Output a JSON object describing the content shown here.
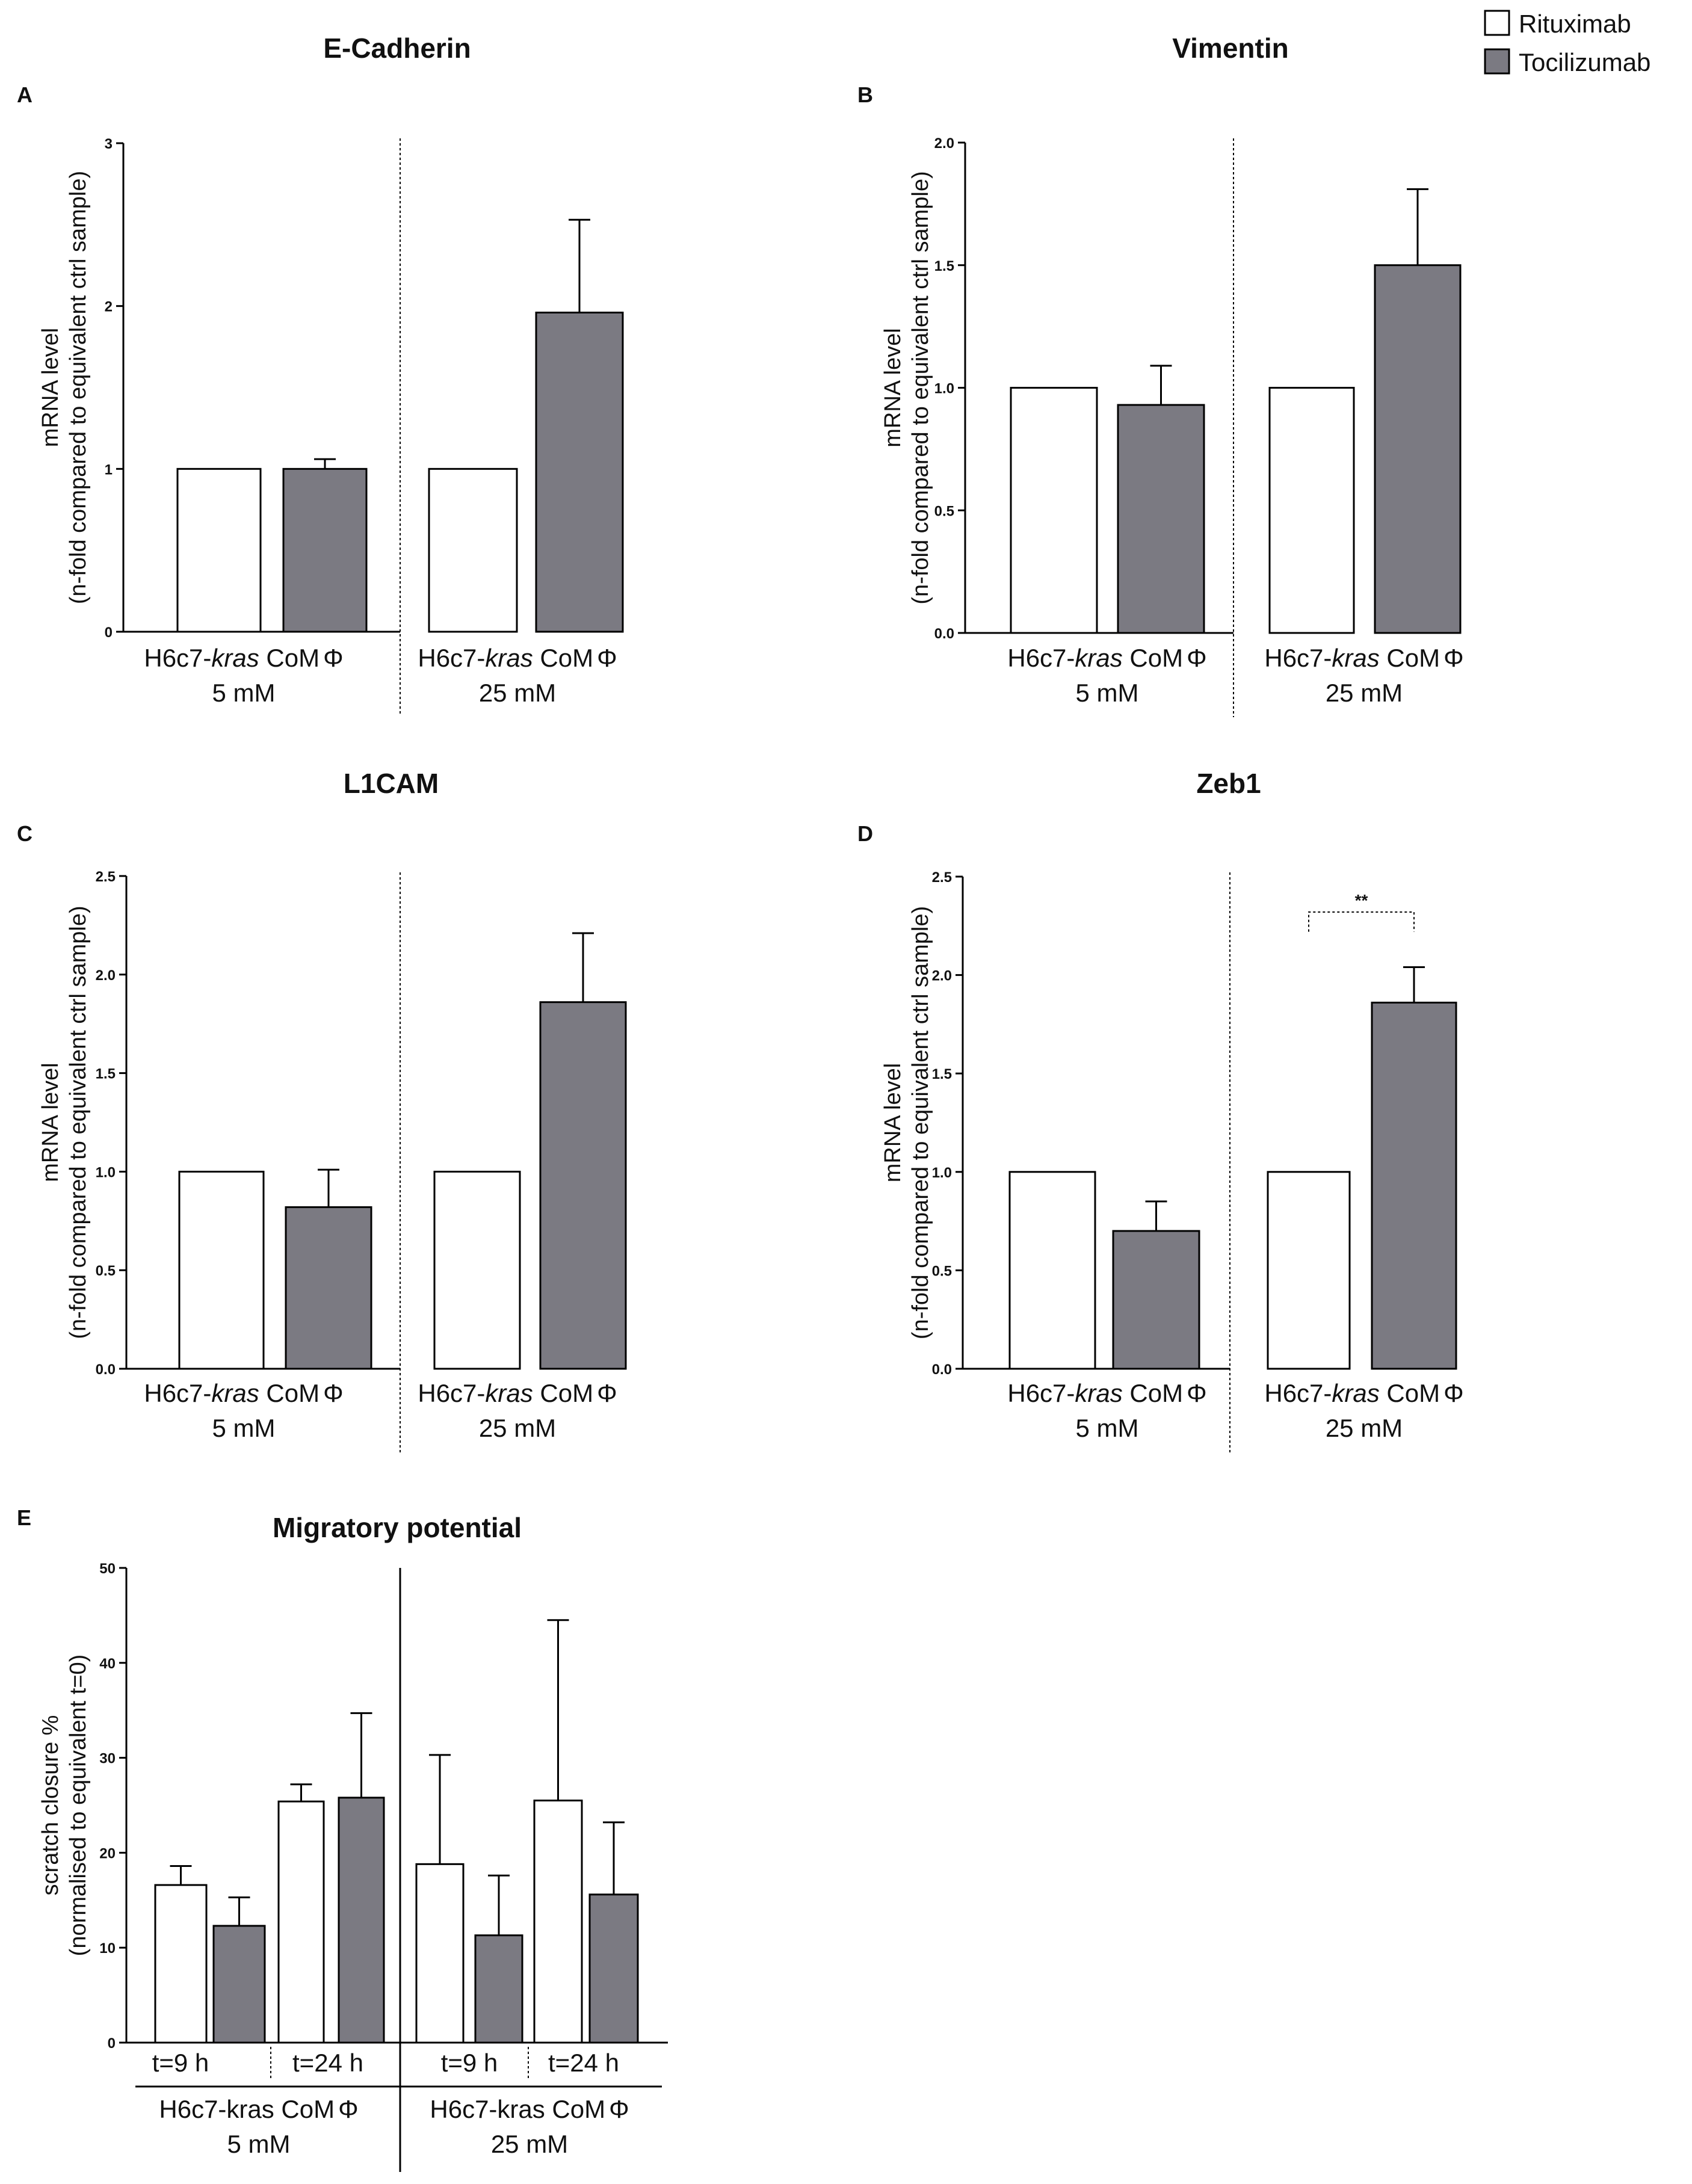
{
  "legend": [
    {
      "label": "Rituximab",
      "color": "#ffffff"
    },
    {
      "label": "Tocilizumab",
      "color": "#7b7a82"
    }
  ],
  "colors": {
    "rituximab": "#ffffff",
    "tocilizumab": "#7b7a82",
    "axis": "#000000"
  },
  "chart_data": [
    {
      "type": "bar",
      "panel": "A",
      "title": "E-Cadherin",
      "ylabel": [
        "mRNA level",
        "(n-fold compared to equivalent ctrl sample)"
      ],
      "ylim": [
        0,
        3
      ],
      "yticks": [
        0,
        1,
        2,
        3
      ],
      "ytick_labels": [
        "0",
        "1",
        "2",
        "3"
      ],
      "groups": [
        {
          "line1_pre": "H6c7-",
          "line1_it": "kras",
          "line1_post": " CoM",
          "phi": "Φ",
          "line2": "5 mM"
        },
        {
          "line1_pre": "H6c7-",
          "line1_it": "kras",
          "line1_post": " CoM",
          "phi": "Φ",
          "line2": "25 mM"
        }
      ],
      "series": [
        {
          "name": "Rituximab",
          "values": [
            1.0,
            1.0
          ],
          "errors": [
            0,
            0
          ]
        },
        {
          "name": "Tocilizumab",
          "values": [
            1.0,
            1.96
          ],
          "errors": [
            0.06,
            0.57
          ]
        }
      ]
    },
    {
      "type": "bar",
      "panel": "B",
      "title": "Vimentin",
      "ylabel": [
        "mRNA level",
        "(n-fold compared to equivalent ctrl sample)"
      ],
      "ylim": [
        0,
        2
      ],
      "yticks": [
        0,
        0.5,
        1,
        1.5,
        2
      ],
      "ytick_labels": [
        "0.0",
        "0.5",
        "1.0",
        "1.5",
        "2.0"
      ],
      "groups": [
        {
          "line1_pre": "H6c7-",
          "line1_it": "kras",
          "line1_post": " CoM",
          "phi": "Φ",
          "line2": "5 mM"
        },
        {
          "line1_pre": "H6c7-",
          "line1_it": "kras",
          "line1_post": " CoM",
          "phi": "Φ",
          "line2": "25 mM"
        }
      ],
      "series": [
        {
          "name": "Rituximab",
          "values": [
            1.0,
            1.0
          ],
          "errors": [
            0,
            0
          ]
        },
        {
          "name": "Tocilizumab",
          "values": [
            0.93,
            1.5
          ],
          "errors": [
            0.16,
            0.31
          ]
        }
      ]
    },
    {
      "type": "bar",
      "panel": "C",
      "title": "L1CAM",
      "ylabel": [
        "mRNA level",
        "(n-fold compared to equivalent ctrl sample)"
      ],
      "ylim": [
        0,
        2.5
      ],
      "yticks": [
        0,
        0.5,
        1,
        1.5,
        2,
        2.5
      ],
      "ytick_labels": [
        "0.0",
        "0.5",
        "1.0",
        "1.5",
        "2.0",
        "2.5"
      ],
      "groups": [
        {
          "line1_pre": "H6c7-",
          "line1_it": "kras",
          "line1_post": " CoM",
          "phi": "Φ",
          "line2": "5 mM"
        },
        {
          "line1_pre": "H6c7-",
          "line1_it": "kras",
          "line1_post": " CoM",
          "phi": "Φ",
          "line2": "25 mM"
        }
      ],
      "series": [
        {
          "name": "Rituximab",
          "values": [
            1.0,
            1.0
          ],
          "errors": [
            0,
            0
          ]
        },
        {
          "name": "Tocilizumab",
          "values": [
            0.82,
            1.86
          ],
          "errors": [
            0.19,
            0.35
          ]
        }
      ]
    },
    {
      "type": "bar",
      "panel": "D",
      "title": "Zeb1",
      "ylabel": [
        "mRNA level",
        "(n-fold compared to equivalent ctrl sample)"
      ],
      "ylim": [
        0,
        2.5
      ],
      "yticks": [
        0,
        0.5,
        1,
        1.5,
        2,
        2.5
      ],
      "ytick_labels": [
        "0.0",
        "0.5",
        "1.0",
        "1.5",
        "2.0",
        "2.5"
      ],
      "significance": {
        "label": "**",
        "group": 1
      },
      "groups": [
        {
          "line1_pre": "H6c7-",
          "line1_it": "kras",
          "line1_post": " CoM",
          "phi": "Φ",
          "line2": "5 mM"
        },
        {
          "line1_pre": "H6c7-",
          "line1_it": "kras",
          "line1_post": " CoM",
          "phi": "Φ",
          "line2": "25 mM"
        }
      ],
      "series": [
        {
          "name": "Rituximab",
          "values": [
            1.0,
            1.0
          ],
          "errors": [
            0,
            0
          ]
        },
        {
          "name": "Tocilizumab",
          "values": [
            0.7,
            1.86
          ],
          "errors": [
            0.15,
            0.18
          ]
        }
      ]
    },
    {
      "type": "bar",
      "panel": "E",
      "title": "Migratory potential",
      "ylabel": [
        "scratch closure %",
        "(normalised to equivalent t=0)"
      ],
      "ylim": [
        0,
        50
      ],
      "yticks": [
        0,
        10,
        20,
        30,
        40,
        50
      ],
      "ytick_labels": [
        "0",
        "10",
        "20",
        "30",
        "40",
        "50"
      ],
      "subgroups": [
        "t=9 h",
        "t=24 h",
        "t=9 h",
        "t=24 h"
      ],
      "groups": [
        {
          "line1_pre": "H6c7-kras CoM",
          "line1_it": "",
          "line1_post": "",
          "phi": "Φ",
          "line2": "5 mM"
        },
        {
          "line1_pre": "H6c7-kras CoM",
          "line1_it": "",
          "line1_post": "",
          "phi": "Φ",
          "line2": "25 mM"
        }
      ],
      "series": [
        {
          "name": "Rituximab",
          "values": [
            16.6,
            25.4,
            18.8,
            25.5
          ],
          "errors": [
            2.0,
            1.8,
            11.5,
            19.0
          ]
        },
        {
          "name": "Tocilizumab",
          "values": [
            12.3,
            25.8,
            11.3,
            15.6
          ],
          "errors": [
            3.0,
            8.9,
            6.3,
            7.6
          ]
        }
      ]
    }
  ]
}
